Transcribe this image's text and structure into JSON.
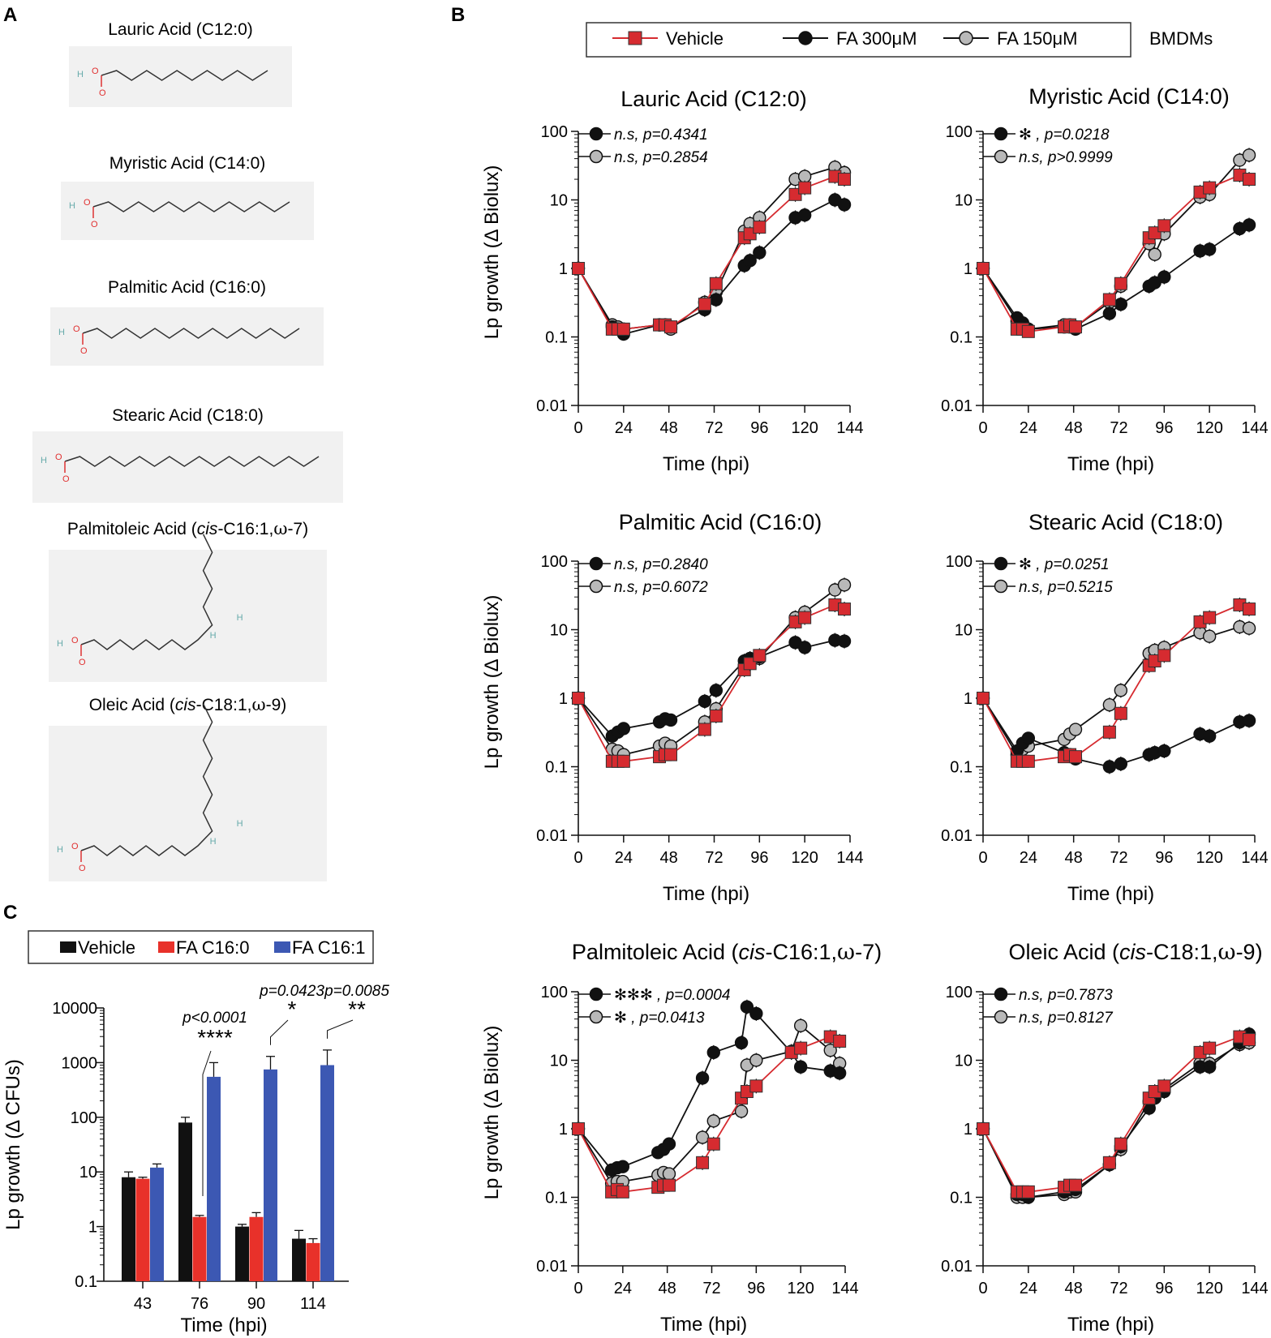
{
  "panel_labels": {
    "a": "A",
    "b": "B",
    "c": "C"
  },
  "structures": [
    {
      "name": "Lauric Acid (C12:0)",
      "carbons": 12,
      "unsat": false
    },
    {
      "name": "Myristic Acid (C14:0)",
      "carbons": 14,
      "unsat": false
    },
    {
      "name": "Palmitic Acid (C16:0)",
      "carbons": 16,
      "unsat": false
    },
    {
      "name": "Stearic Acid (C18:0)",
      "carbons": 18,
      "unsat": false
    },
    {
      "name_parts": [
        "Palmitoleic Acid (",
        "cis",
        "-C16:1,",
        "ω",
        "-7)"
      ],
      "carbons": 16,
      "unsat": true
    },
    {
      "name_parts": [
        "Oleic Acid (",
        "cis",
        "-C18:1,",
        "ω",
        "-9)"
      ],
      "carbons": 18,
      "unsat": true
    }
  ],
  "atom_labels": {
    "h": "H",
    "o": "O"
  },
  "panel_b": {
    "legend": [
      "Vehicle",
      "FA 300μM",
      "FA 150μM"
    ],
    "cell_type": "BMDMs",
    "colors": {
      "vehicle": "#d62b30",
      "fa300": "#111111",
      "fa150": "#b9b9b9"
    }
  },
  "panel_c": {
    "legend": [
      "Vehicle",
      "FA C16:0",
      "FA C16:1"
    ],
    "colors": [
      "#111111",
      "#e8312a",
      "#3c58b3"
    ],
    "sig": [
      {
        "p": "p<0.0001",
        "stars": "****"
      },
      {
        "p": "p=0.0423",
        "stars": "*"
      },
      {
        "p": "p=0.0085",
        "stars": "**"
      }
    ]
  },
  "chart_data": [
    {
      "type": "line",
      "title": "Lauric Acid (C12:0)",
      "xlabel": "Time (hpi)",
      "ylabel": "Lp growth (Δ Biolux)",
      "yscale": "log",
      "ylim": [
        0.01,
        100
      ],
      "xlim": [
        0,
        144
      ],
      "xticks": [
        "0",
        "24",
        "48",
        "72",
        "96",
        "120",
        "144"
      ],
      "yticks": [
        "0.01",
        "0.1",
        "1",
        "10",
        "100"
      ],
      "stats": [
        {
          "sym": "",
          "text": "n.s, p=0.4341"
        },
        {
          "sym": "",
          "text": "n.s, p=0.2854"
        }
      ],
      "x": [
        0,
        18,
        21,
        24,
        43,
        46,
        49,
        67,
        73,
        88,
        91,
        96,
        115,
        120,
        136,
        141
      ],
      "series": [
        {
          "name": "Vehicle",
          "values": [
            1,
            0.13,
            0.13,
            0.13,
            0.15,
            0.15,
            0.14,
            0.3,
            0.6,
            2.8,
            3.2,
            4,
            12,
            15,
            22,
            20
          ]
        },
        {
          "name": "FA 300μM",
          "values": [
            1,
            0.14,
            0.13,
            0.11,
            0.15,
            0.15,
            0.14,
            0.25,
            0.35,
            1.1,
            1.3,
            1.7,
            5.5,
            6,
            10,
            8.5
          ]
        },
        {
          "name": "FA 150μM",
          "values": [
            1,
            0.15,
            0.14,
            0.13,
            0.15,
            0.15,
            0.13,
            0.32,
            0.45,
            3.5,
            4.5,
            5.5,
            20,
            22,
            30,
            25
          ]
        }
      ]
    },
    {
      "type": "line",
      "title": "Myristic Acid (C14:0)",
      "xlabel": "Time (hpi)",
      "ylabel": "",
      "yscale": "log",
      "ylim": [
        0.01,
        100
      ],
      "xlim": [
        0,
        144
      ],
      "xticks": [
        "0",
        "24",
        "48",
        "72",
        "96",
        "120",
        "144"
      ],
      "yticks": [
        "0.01",
        "0.1",
        "1",
        "10",
        "100"
      ],
      "stats": [
        {
          "sym": "✻",
          "text": ", p=0.0218"
        },
        {
          "sym": "",
          "text": "n.s, p>0.9999"
        }
      ],
      "x": [
        0,
        18,
        21,
        24,
        43,
        46,
        49,
        67,
        73,
        88,
        91,
        96,
        115,
        120,
        136,
        141
      ],
      "series": [
        {
          "name": "Vehicle",
          "values": [
            1,
            0.13,
            0.13,
            0.12,
            0.14,
            0.15,
            0.14,
            0.35,
            0.6,
            2.8,
            3.3,
            4.2,
            13,
            15,
            23,
            20
          ]
        },
        {
          "name": "FA 300μM",
          "values": [
            1,
            0.19,
            0.16,
            0.13,
            0.14,
            0.14,
            0.13,
            0.22,
            0.3,
            0.55,
            0.62,
            0.75,
            1.8,
            1.9,
            3.8,
            4.3
          ]
        },
        {
          "name": "FA 150μM",
          "values": [
            1,
            0.17,
            0.14,
            0.13,
            0.15,
            0.15,
            0.14,
            0.32,
            0.55,
            2.3,
            1.6,
            3.2,
            11,
            12,
            38,
            45
          ]
        }
      ]
    },
    {
      "type": "line",
      "title": "Palmitic Acid (C16:0)",
      "xlabel": "Time (hpi)",
      "ylabel": "Lp growth (Δ Biolux)",
      "yscale": "log",
      "ylim": [
        0.01,
        100
      ],
      "xlim": [
        0,
        144
      ],
      "xticks": [
        "0",
        "24",
        "48",
        "72",
        "96",
        "120",
        "144"
      ],
      "yticks": [
        "0.01",
        "0.1",
        "1",
        "10",
        "100"
      ],
      "stats": [
        {
          "sym": "",
          "text": "n.s, p=0.2840"
        },
        {
          "sym": "",
          "text": "n.s, p=0.6072"
        }
      ],
      "x": [
        0,
        18,
        21,
        24,
        43,
        46,
        49,
        67,
        73,
        88,
        91,
        96,
        115,
        120,
        136,
        141
      ],
      "series": [
        {
          "name": "Vehicle",
          "values": [
            1,
            0.12,
            0.12,
            0.12,
            0.14,
            0.15,
            0.15,
            0.35,
            0.55,
            2.6,
            3.2,
            4.2,
            13,
            15,
            23,
            20
          ]
        },
        {
          "name": "FA 300μM",
          "values": [
            1,
            0.28,
            0.32,
            0.36,
            0.45,
            0.5,
            0.48,
            0.9,
            1.3,
            3.5,
            3.8,
            4,
            6.5,
            5.5,
            7,
            6.8
          ]
        },
        {
          "name": "FA 150μM",
          "values": [
            1,
            0.18,
            0.17,
            0.15,
            0.2,
            0.22,
            0.2,
            0.45,
            0.7,
            3,
            3.5,
            3.8,
            15,
            18,
            38,
            45
          ]
        }
      ]
    },
    {
      "type": "line",
      "title": "Stearic Acid (C18:0)",
      "xlabel": "Time (hpi)",
      "ylabel": "",
      "yscale": "log",
      "ylim": [
        0.01,
        100
      ],
      "xlim": [
        0,
        144
      ],
      "xticks": [
        "0",
        "24",
        "48",
        "72",
        "96",
        "120",
        "144"
      ],
      "yticks": [
        "0.01",
        "0.1",
        "1",
        "10",
        "100"
      ],
      "stats": [
        {
          "sym": "✻",
          "text": ", p=0.0251"
        },
        {
          "sym": "",
          "text": "n.s, p=0.5215"
        }
      ],
      "x": [
        0,
        18,
        21,
        24,
        43,
        46,
        49,
        67,
        73,
        88,
        91,
        96,
        115,
        120,
        136,
        141
      ],
      "series": [
        {
          "name": "Vehicle",
          "values": [
            1,
            0.12,
            0.12,
            0.12,
            0.14,
            0.15,
            0.14,
            0.32,
            0.6,
            3,
            3.5,
            4.2,
            13,
            15,
            23,
            20
          ]
        },
        {
          "name": "FA 300μM",
          "values": [
            1,
            0.17,
            0.22,
            0.26,
            0.16,
            0.15,
            0.13,
            0.1,
            0.11,
            0.15,
            0.16,
            0.17,
            0.3,
            0.28,
            0.45,
            0.47
          ]
        },
        {
          "name": "FA 150μM",
          "values": [
            1,
            0.15,
            0.18,
            0.2,
            0.25,
            0.3,
            0.35,
            0.8,
            1.3,
            4.5,
            5,
            5.5,
            9,
            8,
            11,
            10.5
          ]
        }
      ]
    },
    {
      "type": "line",
      "title_parts": [
        "Palmitoleic Acid (",
        "cis",
        "-C16:1,",
        "ω",
        "-7)"
      ],
      "xlabel": "Time (hpi)",
      "ylabel": "Lp growth (Δ Biolux)",
      "yscale": "log",
      "ylim": [
        0.01,
        100
      ],
      "xlim": [
        0,
        144
      ],
      "xticks": [
        "0",
        "24",
        "48",
        "72",
        "96",
        "120",
        "144"
      ],
      "yticks": [
        "0.01",
        "0.1",
        "1",
        "10",
        "100"
      ],
      "stats": [
        {
          "sym": "✻✻✻",
          "text": ", p=0.0004"
        },
        {
          "sym": "✻",
          "text": ", p=0.0413"
        }
      ],
      "x": [
        0,
        18,
        21,
        24,
        43,
        46,
        49,
        67,
        73,
        88,
        91,
        96,
        115,
        120,
        136,
        141
      ],
      "series": [
        {
          "name": "Vehicle",
          "values": [
            1,
            0.12,
            0.13,
            0.12,
            0.14,
            0.15,
            0.15,
            0.32,
            0.6,
            2.8,
            3.5,
            4.2,
            13,
            15,
            22,
            19
          ]
        },
        {
          "name": "FA 300μM",
          "values": [
            1,
            0.25,
            0.27,
            0.28,
            0.45,
            0.5,
            0.6,
            5.5,
            13,
            18,
            60,
            48,
            13,
            8,
            7,
            6.5
          ]
        },
        {
          "name": "FA 150μM",
          "values": [
            1,
            0.16,
            0.17,
            0.17,
            0.21,
            0.23,
            0.22,
            0.75,
            1.3,
            1.8,
            8.5,
            10,
            13.5,
            32,
            14,
            9
          ]
        }
      ]
    },
    {
      "type": "line",
      "title_parts": [
        "Oleic Acid (",
        "cis",
        "-C18:1,",
        "ω",
        "-9)"
      ],
      "xlabel": "Time (hpi)",
      "ylabel": "",
      "yscale": "log",
      "ylim": [
        0.01,
        100
      ],
      "xlim": [
        0,
        144
      ],
      "xticks": [
        "0",
        "24",
        "48",
        "72",
        "96",
        "120",
        "144"
      ],
      "yticks": [
        "0.01",
        "0.1",
        "1",
        "10",
        "100"
      ],
      "stats": [
        {
          "sym": "",
          "text": "n.s, p=0.7873"
        },
        {
          "sym": "",
          "text": "n.s, p=0.8127"
        }
      ],
      "x": [
        0,
        18,
        21,
        24,
        43,
        46,
        49,
        67,
        73,
        88,
        91,
        96,
        115,
        120,
        136,
        141
      ],
      "series": [
        {
          "name": "Vehicle",
          "values": [
            1,
            0.12,
            0.12,
            0.12,
            0.14,
            0.15,
            0.15,
            0.32,
            0.6,
            2.8,
            3.5,
            4.2,
            13,
            15,
            22,
            20
          ]
        },
        {
          "name": "FA 300μM",
          "values": [
            1,
            0.11,
            0.11,
            0.1,
            0.12,
            0.13,
            0.13,
            0.3,
            0.55,
            2,
            2.8,
            3.5,
            8,
            8,
            18,
            24
          ]
        },
        {
          "name": "FA 150μM",
          "values": [
            1,
            0.1,
            0.1,
            0.1,
            0.11,
            0.12,
            0.12,
            0.3,
            0.5,
            2.5,
            3,
            3.8,
            9,
            9,
            17,
            18
          ]
        }
      ]
    },
    {
      "type": "bar",
      "xlabel": "Time (hpi)",
      "ylabel": "Lp growth (Δ CFUs)",
      "yscale": "log",
      "ylim": [
        0.1,
        10000
      ],
      "yticks": [
        "0.1",
        "1",
        "10",
        "100",
        "1000",
        "10000"
      ],
      "categories": [
        "43",
        "76",
        "90",
        "114"
      ],
      "series": [
        {
          "name": "Vehicle",
          "values": [
            8,
            80,
            1,
            0.6
          ],
          "errors": [
            10,
            100,
            1.1,
            0.85
          ]
        },
        {
          "name": "FA C16:0",
          "values": [
            7.5,
            1.5,
            1.5,
            0.5
          ],
          "errors": [
            8,
            1.6,
            1.8,
            0.6
          ]
        },
        {
          "name": "FA C16:1",
          "values": [
            12,
            550,
            750,
            900
          ],
          "errors": [
            14,
            1000,
            1300,
            1700
          ]
        }
      ]
    }
  ]
}
